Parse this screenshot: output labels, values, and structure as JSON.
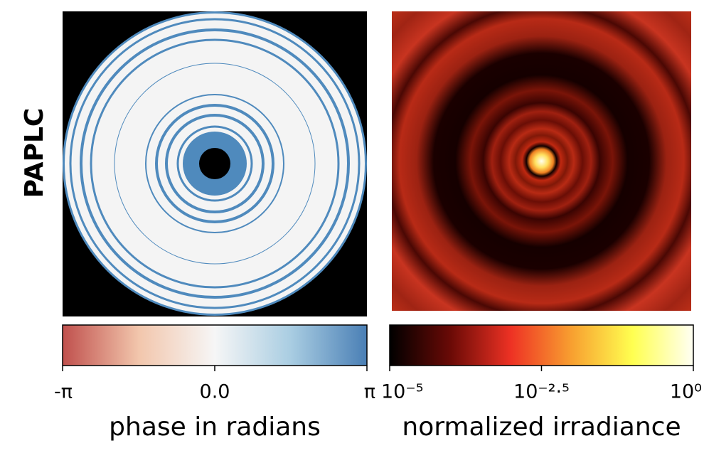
{
  "row_label": "PAPLC",
  "chart_data": [
    {
      "type": "colorbar",
      "label": "phase in radians",
      "colormap": [
        "#c0504d",
        "#f2c6ac",
        "#f6f6f6",
        "#a9cde2",
        "#4a7fb5"
      ],
      "xlim": [
        -3.14159,
        3.14159
      ],
      "xticks": [
        {
          "value": -3.14159,
          "label": "-π"
        },
        {
          "value": 0,
          "label": "0.0"
        },
        {
          "value": 3.14159,
          "label": "π"
        }
      ]
    },
    {
      "type": "colorbar",
      "label": "normalized irradiance",
      "log": true,
      "colormap": [
        "#000000",
        "#6a0a06",
        "#ee3224",
        "#f8a030",
        "#ffff50",
        "#fffff4"
      ],
      "xlim": [
        1e-05,
        1
      ],
      "xticks": [
        {
          "value": 1e-05,
          "label": "10⁻⁵"
        },
        {
          "value": 0.00316,
          "label": "10⁻²·⁵"
        },
        {
          "value": 1,
          "label": "10⁰"
        }
      ]
    }
  ]
}
